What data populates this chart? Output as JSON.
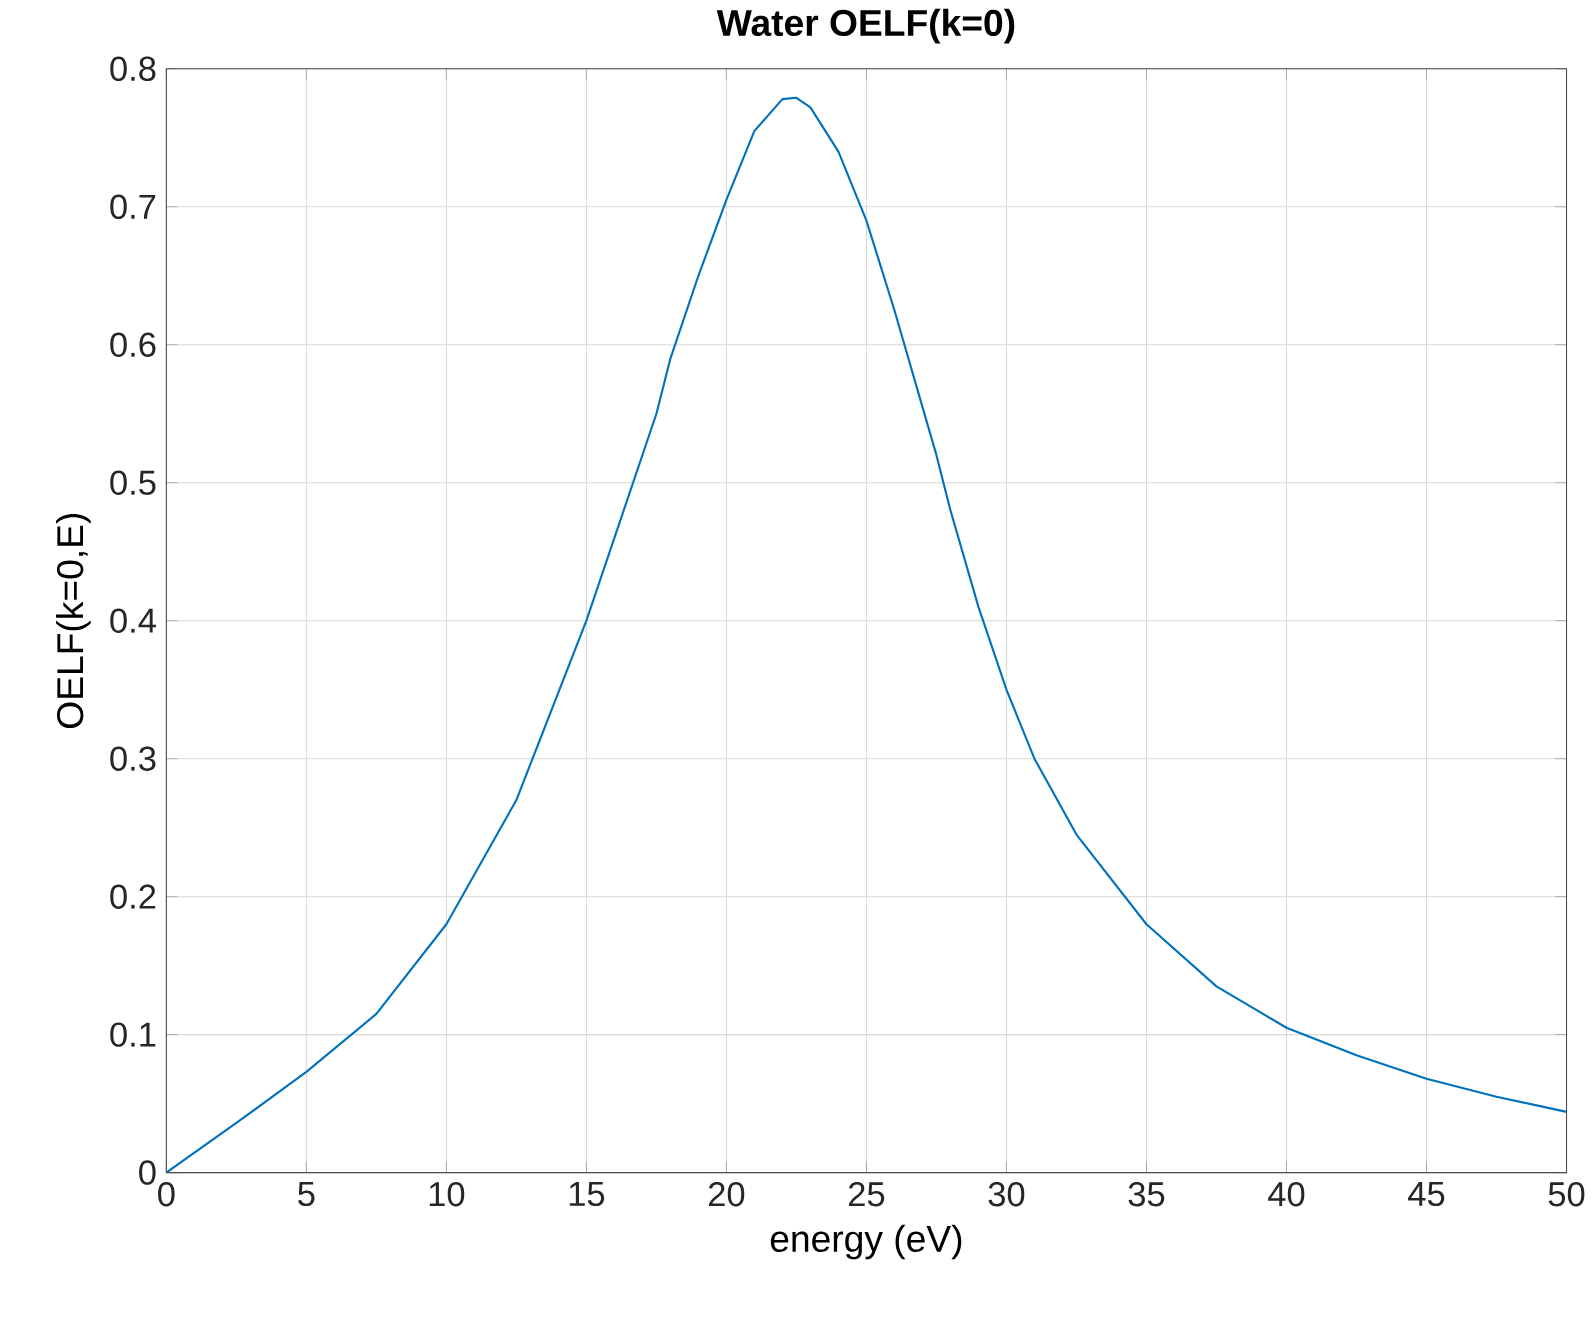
{
  "chart_data": {
    "type": "line",
    "title": "Water OELF(k=0)",
    "xlabel": "energy (eV)",
    "ylabel": "OELF(k=0,E)",
    "series": [
      {
        "color": "#0072bd",
        "x": [
          0,
          2.5,
          5,
          7.5,
          10,
          12.5,
          15,
          16,
          17,
          17.5,
          18,
          19,
          20,
          21,
          22,
          22.5,
          23,
          24,
          25,
          26,
          27,
          27.5,
          28,
          29,
          30,
          31,
          32.5,
          35,
          37.5,
          40,
          42.5,
          45,
          47.5,
          50
        ],
        "values": [
          0,
          0.036,
          0.073,
          0.115,
          0.18,
          0.27,
          0.4,
          0.46,
          0.52,
          0.55,
          0.59,
          0.65,
          0.705,
          0.755,
          0.778,
          0.779,
          0.772,
          0.74,
          0.69,
          0.625,
          0.555,
          0.52,
          0.48,
          0.41,
          0.35,
          0.3,
          0.245,
          0.18,
          0.135,
          0.105,
          0.085,
          0.068,
          0.055,
          0.044
        ]
      }
    ],
    "xlim": [
      0,
      50
    ],
    "ylim": [
      0,
      0.8
    ],
    "xticks": [
      0,
      5,
      10,
      15,
      20,
      25,
      30,
      35,
      40,
      45,
      50
    ],
    "yticks": [
      0,
      0.1,
      0.2,
      0.3,
      0.4,
      0.5,
      0.6,
      0.7,
      0.8
    ],
    "grid": true,
    "marker": "none",
    "line_style": "solid"
  }
}
